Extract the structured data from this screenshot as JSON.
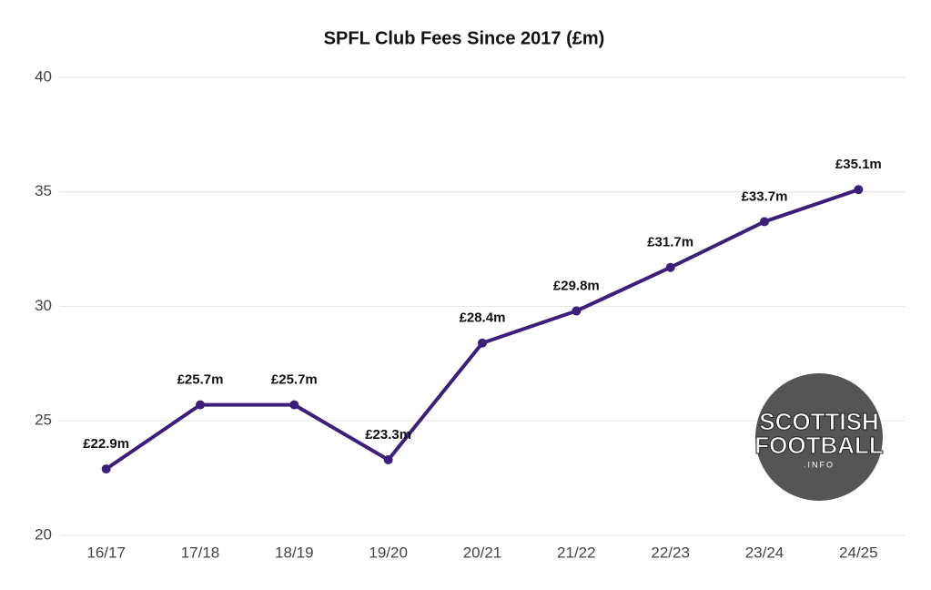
{
  "chart_data": {
    "type": "line",
    "title": "SPFL Club Fees Since 2017 (£m)",
    "categories": [
      "16/17",
      "17/18",
      "18/19",
      "19/20",
      "20/21",
      "21/22",
      "22/23",
      "23/24",
      "24/25"
    ],
    "series": [
      {
        "color": "#3b1f7a",
        "values": [
          22.9,
          25.7,
          25.7,
          23.3,
          28.4,
          29.8,
          31.7,
          33.7,
          35.1
        ],
        "value_labels": [
          "£22.9m",
          "£25.7m",
          "£25.7m",
          "£23.3m",
          "£28.4m",
          "£29.8m",
          "£31.7m",
          "£33.7m",
          "£35.1m"
        ]
      }
    ],
    "ylim": [
      20,
      40
    ],
    "yticks": [
      20,
      25,
      30,
      35,
      40
    ],
    "grid": true,
    "watermark": [
      "SCOTTISH",
      "FOOTBALL",
      ".INFO"
    ]
  }
}
